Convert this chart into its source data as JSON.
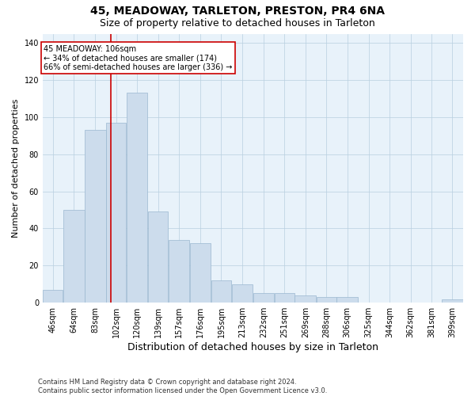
{
  "title": "45, MEADOWAY, TARLETON, PRESTON, PR4 6NA",
  "subtitle": "Size of property relative to detached houses in Tarleton",
  "xlabel": "Distribution of detached houses by size in Tarleton",
  "ylabel": "Number of detached properties",
  "bar_color": "#ccdcec",
  "bar_edge_color": "#9ab8d0",
  "grid_color": "#b8cfe0",
  "background_color": "#e8f2fa",
  "vline_x": 106,
  "vline_color": "#cc0000",
  "annotation_text": "45 MEADOWAY: 106sqm\n← 34% of detached houses are smaller (174)\n66% of semi-detached houses are larger (336) →",
  "annotation_box_color": "white",
  "annotation_edge_color": "#cc0000",
  "bins": [
    46,
    64,
    83,
    102,
    120,
    139,
    157,
    176,
    195,
    213,
    232,
    251,
    269,
    288,
    306,
    325,
    344,
    362,
    381,
    399,
    418
  ],
  "values": [
    7,
    50,
    93,
    97,
    113,
    49,
    34,
    32,
    12,
    10,
    5,
    5,
    4,
    3,
    3,
    0,
    0,
    0,
    0,
    2
  ],
  "ylim": [
    0,
    145
  ],
  "yticks": [
    0,
    20,
    40,
    60,
    80,
    100,
    120,
    140
  ],
  "footer_text": "Contains HM Land Registry data © Crown copyright and database right 2024.\nContains public sector information licensed under the Open Government Licence v3.0.",
  "title_fontsize": 10,
  "subtitle_fontsize": 9,
  "xlabel_fontsize": 9,
  "ylabel_fontsize": 8,
  "tick_fontsize": 7,
  "footer_fontsize": 6
}
